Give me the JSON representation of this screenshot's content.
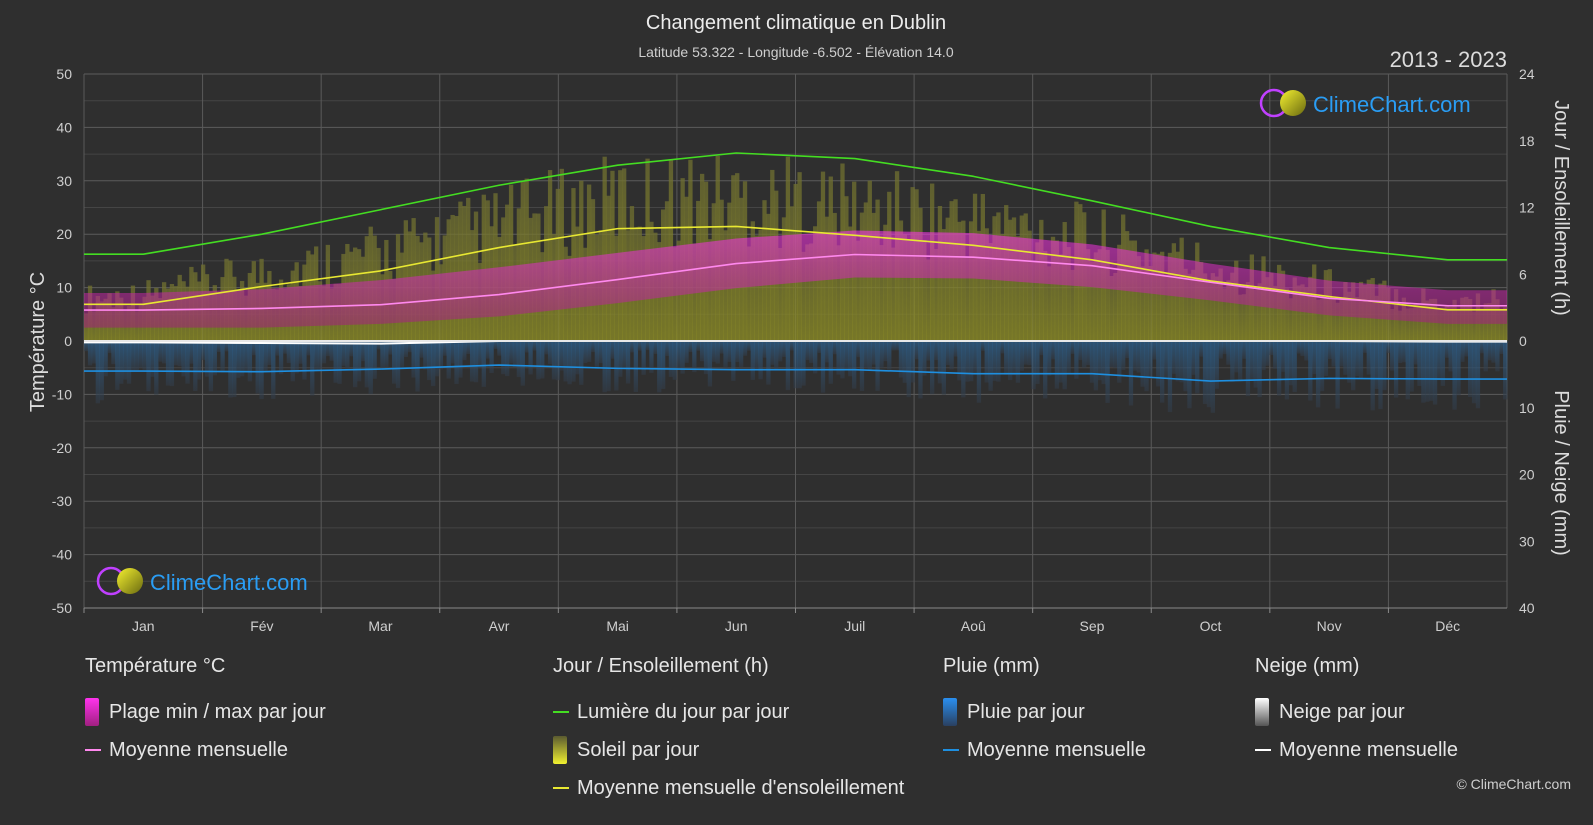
{
  "header": {
    "title": "Changement climatique en Dublin",
    "subtitle": "Latitude 53.322 - Longitude -6.502 - Élévation 14.0",
    "period": "2013 - 2023"
  },
  "logo": {
    "text": "ClimeChart.com"
  },
  "copyright": "© ClimeChart.com",
  "colors": {
    "background": "#2f2f2f",
    "daylight": "#44dd22",
    "sunshine_mean": "#e8e832",
    "sunshine_bar": "#9a9a2a",
    "temp_range": "#d040c0",
    "temp_mean": "#ff88ee",
    "rain_bar": "#2a6090",
    "rain_mean": "#1e8fe0",
    "snow_mean": "#ffffff",
    "logo_text": "#2a9df4"
  },
  "chart_data": {
    "type": "line",
    "x_categories": [
      "Jan",
      "Fév",
      "Mar",
      "Avr",
      "Mai",
      "Jun",
      "Juil",
      "Aoû",
      "Sep",
      "Oct",
      "Nov",
      "Déc"
    ],
    "left_axis": {
      "label": "Température °C",
      "ylim": [
        -50,
        50
      ],
      "ticks": [
        50,
        40,
        30,
        20,
        10,
        0,
        -10,
        -20,
        -30,
        -40,
        -50
      ]
    },
    "right_axis_top": {
      "label": "Jour / Ensoleillement (h)",
      "ylim": [
        0,
        24
      ],
      "ticks": [
        24,
        18,
        12,
        6,
        0
      ]
    },
    "right_axis_bottom": {
      "label": "Pluie / Neige (mm)",
      "ylim": [
        0,
        40
      ],
      "ticks": [
        0,
        10,
        20,
        30,
        40
      ]
    },
    "grid": true,
    "series": [
      {
        "name": "Lumière du jour par jour",
        "axis": "hours",
        "values": [
          7.8,
          9.6,
          11.8,
          14.0,
          15.8,
          16.9,
          16.4,
          14.8,
          12.6,
          10.3,
          8.4,
          7.3
        ]
      },
      {
        "name": "Moyenne mensuelle d'ensoleillement",
        "axis": "hours",
        "values": [
          3.3,
          4.9,
          6.3,
          8.4,
          10.1,
          10.3,
          9.5,
          8.6,
          7.3,
          5.4,
          4.0,
          2.8
        ]
      },
      {
        "name": "Moyenne mensuelle",
        "kind": "temperature",
        "axis": "temp",
        "values": [
          5.8,
          6.1,
          6.8,
          8.7,
          11.5,
          14.5,
          16.2,
          15.7,
          14.1,
          11.0,
          8.0,
          6.6
        ]
      },
      {
        "name": "Moyenne mensuelle",
        "kind": "rain",
        "axis": "precip",
        "values": [
          4.5,
          4.6,
          4.2,
          3.6,
          4.1,
          4.3,
          4.3,
          4.9,
          4.9,
          6.0,
          5.6,
          5.7
        ]
      },
      {
        "name": "Moyenne mensuelle",
        "kind": "snow",
        "axis": "precip",
        "values": [
          0.2,
          0.3,
          0.4,
          0.0,
          0.0,
          0.0,
          0.0,
          0.0,
          0.0,
          0.0,
          0.0,
          0.1
        ]
      }
    ],
    "temp_range": {
      "name": "Plage min / max par jour",
      "min": [
        2.5,
        2.5,
        3.2,
        4.6,
        7.1,
        9.9,
        11.9,
        11.7,
        10.1,
        7.6,
        4.8,
        3.2
      ],
      "max": [
        9.0,
        9.7,
        11.4,
        13.8,
        16.5,
        19.2,
        20.7,
        20.2,
        18.1,
        14.5,
        11.3,
        9.5
      ]
    },
    "sunshine_daily": {
      "name": "Soleil par jour",
      "values": [
        3.3,
        4.9,
        6.3,
        8.4,
        10.1,
        10.3,
        9.5,
        8.6,
        7.3,
        5.4,
        4.0,
        2.8
      ]
    },
    "rain_daily": {
      "name": "Pluie par jour",
      "values": [
        4.5,
        4.6,
        4.2,
        3.6,
        4.1,
        4.3,
        4.3,
        4.9,
        4.9,
        6.0,
        5.6,
        5.7
      ]
    }
  },
  "legend": {
    "temperature": {
      "title": "Température °C",
      "items": [
        "Plage min / max par jour",
        "Moyenne mensuelle"
      ]
    },
    "daylight": {
      "title": "Jour / Ensoleillement (h)",
      "items": [
        "Lumière du jour par jour",
        "Soleil par jour",
        "Moyenne mensuelle d'ensoleillement"
      ]
    },
    "rain": {
      "title": "Pluie (mm)",
      "items": [
        "Pluie par jour",
        "Moyenne mensuelle"
      ]
    },
    "snow": {
      "title": "Neige (mm)",
      "items": [
        "Neige par jour",
        "Moyenne mensuelle"
      ]
    }
  }
}
